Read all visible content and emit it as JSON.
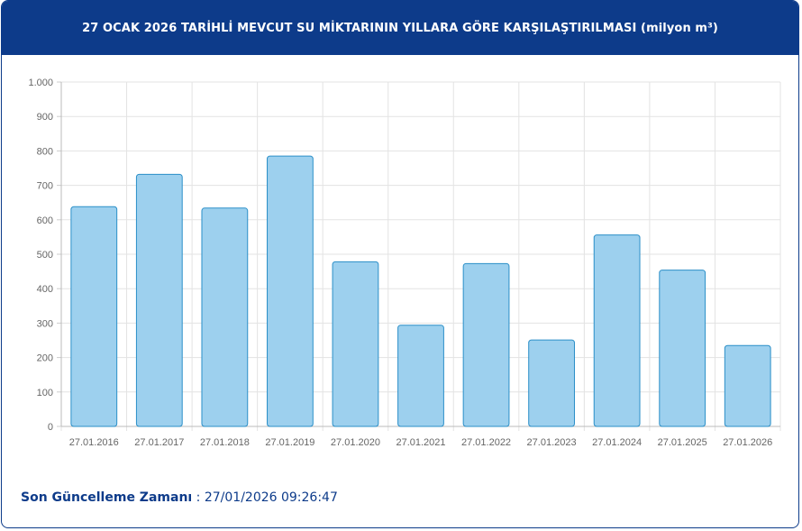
{
  "header": {
    "title": "27 OCAK 2026 TARİHLİ MEVCUT SU MİKTARININ YILLARA GÖRE KARŞILAŞTIRILMASI (milyon m³)"
  },
  "footer": {
    "label": "Son Güncelleme Zamanı",
    "separator": " : ",
    "value": "27/01/2026 09:26:47"
  },
  "colors": {
    "header_bg": "#0d3b8a",
    "bar_fill": "#9dd0ee",
    "bar_stroke": "#2b8fc8",
    "footer_text": "#0d3b8a"
  },
  "chart_data": {
    "type": "bar",
    "title": "27 OCAK 2026 TARİHLİ MEVCUT SU MİKTARININ YILLARA GÖRE KARŞILAŞTIRILMASI (milyon m³)",
    "categories": [
      "27.01.2016",
      "27.01.2017",
      "27.01.2018",
      "27.01.2019",
      "27.01.2020",
      "27.01.2021",
      "27.01.2022",
      "27.01.2023",
      "27.01.2024",
      "27.01.2025",
      "27.01.2026"
    ],
    "values": [
      638,
      732,
      634,
      785,
      478,
      294,
      473,
      251,
      556,
      454,
      235
    ],
    "ylim": [
      0,
      1000
    ],
    "yticks": [
      0,
      100,
      200,
      300,
      400,
      500,
      600,
      700,
      800,
      900,
      1000
    ],
    "ytick_labels": [
      "0",
      "100",
      "200",
      "300",
      "400",
      "500",
      "600",
      "700",
      "800",
      "900",
      "1.000"
    ],
    "grid": true,
    "legend": "none"
  }
}
